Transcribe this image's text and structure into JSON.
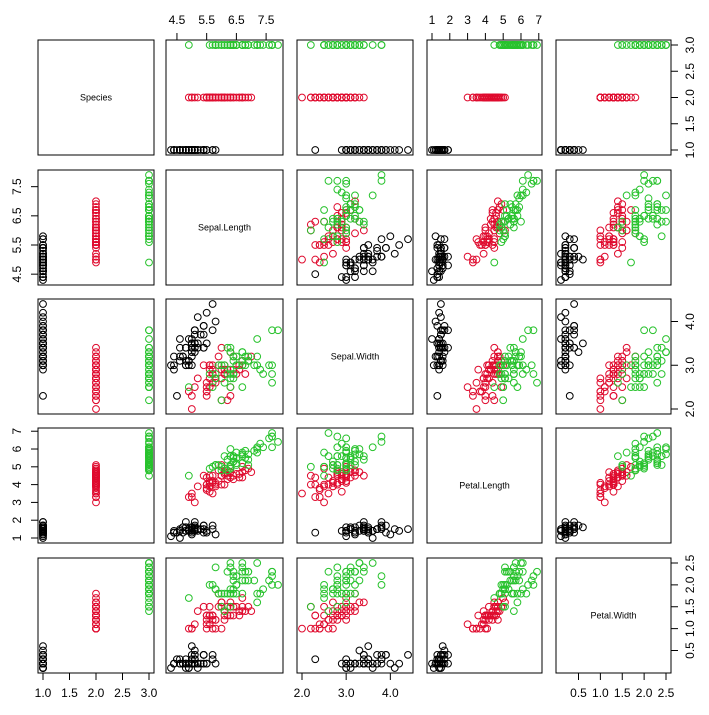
{
  "chart_data": {
    "type": "scatter",
    "kind": "scatterplot-matrix",
    "variables": [
      "Species",
      "Sepal.Length",
      "Sepal.Width",
      "Petal.Length",
      "Petal.Width"
    ],
    "ranges": {
      "Species": [
        1,
        3
      ],
      "Sepal.Length": [
        4.3,
        7.9
      ],
      "Sepal.Width": [
        2.0,
        4.4
      ],
      "Petal.Length": [
        1.0,
        6.9
      ],
      "Petal.Width": [
        0.1,
        2.5
      ]
    },
    "ticks": {
      "Species": [
        "1.0",
        "1.5",
        "2.0",
        "2.5",
        "3.0"
      ],
      "Sepal.Length": [
        "4.5",
        "5.5",
        "6.5",
        "7.5"
      ],
      "Sepal.Width": [
        "2.0",
        "3.0",
        "4.0"
      ],
      "Petal.Length": [
        "1",
        "2",
        "3",
        "4",
        "5",
        "6",
        "7"
      ],
      "Petal.Width": [
        "0.5",
        "1.0",
        "1.5",
        "2.0",
        "2.5"
      ]
    },
    "group_colors": {
      "1": "#000000",
      "2": "#df0b2e",
      "3": "#28c22d"
    },
    "grid": false,
    "groups": [
      {
        "species": 1,
        "points": [
          [
            5.1,
            3.5,
            1.4,
            0.2
          ],
          [
            4.9,
            3.0,
            1.4,
            0.2
          ],
          [
            4.7,
            3.2,
            1.3,
            0.2
          ],
          [
            4.6,
            3.1,
            1.5,
            0.2
          ],
          [
            5.0,
            3.6,
            1.4,
            0.2
          ],
          [
            5.4,
            3.9,
            1.7,
            0.4
          ],
          [
            4.6,
            3.4,
            1.4,
            0.3
          ],
          [
            5.0,
            3.4,
            1.5,
            0.2
          ],
          [
            4.4,
            2.9,
            1.4,
            0.2
          ],
          [
            4.9,
            3.1,
            1.5,
            0.1
          ],
          [
            5.4,
            3.7,
            1.5,
            0.2
          ],
          [
            4.8,
            3.4,
            1.6,
            0.2
          ],
          [
            4.8,
            3.0,
            1.4,
            0.1
          ],
          [
            4.3,
            3.0,
            1.1,
            0.1
          ],
          [
            5.8,
            4.0,
            1.2,
            0.2
          ],
          [
            5.7,
            4.4,
            1.5,
            0.4
          ],
          [
            5.4,
            3.9,
            1.3,
            0.4
          ],
          [
            5.1,
            3.5,
            1.4,
            0.3
          ],
          [
            5.7,
            3.8,
            1.7,
            0.3
          ],
          [
            5.1,
            3.8,
            1.5,
            0.3
          ],
          [
            5.4,
            3.4,
            1.7,
            0.2
          ],
          [
            5.1,
            3.7,
            1.5,
            0.4
          ],
          [
            4.6,
            3.6,
            1.0,
            0.2
          ],
          [
            5.1,
            3.3,
            1.7,
            0.5
          ],
          [
            4.8,
            3.4,
            1.9,
            0.2
          ],
          [
            5.0,
            3.0,
            1.6,
            0.2
          ],
          [
            5.0,
            3.4,
            1.6,
            0.4
          ],
          [
            5.2,
            3.5,
            1.5,
            0.2
          ],
          [
            5.2,
            3.4,
            1.4,
            0.2
          ],
          [
            4.7,
            3.2,
            1.6,
            0.2
          ],
          [
            4.8,
            3.1,
            1.6,
            0.2
          ],
          [
            5.4,
            3.4,
            1.5,
            0.4
          ],
          [
            5.2,
            4.1,
            1.5,
            0.1
          ],
          [
            5.5,
            4.2,
            1.4,
            0.2
          ],
          [
            4.9,
            3.1,
            1.5,
            0.2
          ],
          [
            5.0,
            3.2,
            1.2,
            0.2
          ],
          [
            5.5,
            3.5,
            1.3,
            0.2
          ],
          [
            4.9,
            3.6,
            1.4,
            0.1
          ],
          [
            4.4,
            3.0,
            1.3,
            0.2
          ],
          [
            5.1,
            3.4,
            1.5,
            0.2
          ],
          [
            5.0,
            3.5,
            1.3,
            0.3
          ],
          [
            4.5,
            2.3,
            1.3,
            0.3
          ],
          [
            4.4,
            3.2,
            1.3,
            0.2
          ],
          [
            5.0,
            3.5,
            1.6,
            0.6
          ],
          [
            5.1,
            3.8,
            1.9,
            0.4
          ],
          [
            4.8,
            3.0,
            1.4,
            0.3
          ],
          [
            5.1,
            3.8,
            1.6,
            0.2
          ],
          [
            4.6,
            3.2,
            1.4,
            0.2
          ],
          [
            5.3,
            3.7,
            1.5,
            0.2
          ],
          [
            5.0,
            3.3,
            1.4,
            0.2
          ]
        ]
      },
      {
        "species": 2,
        "points": [
          [
            7.0,
            3.2,
            4.7,
            1.4
          ],
          [
            6.4,
            3.2,
            4.5,
            1.5
          ],
          [
            6.9,
            3.1,
            4.9,
            1.5
          ],
          [
            5.5,
            2.3,
            4.0,
            1.3
          ],
          [
            6.5,
            2.8,
            4.6,
            1.5
          ],
          [
            5.7,
            2.8,
            4.5,
            1.3
          ],
          [
            6.3,
            3.3,
            4.7,
            1.6
          ],
          [
            4.9,
            2.4,
            3.3,
            1.0
          ],
          [
            6.6,
            2.9,
            4.6,
            1.3
          ],
          [
            5.2,
            2.7,
            3.9,
            1.4
          ],
          [
            5.0,
            2.0,
            3.5,
            1.0
          ],
          [
            5.9,
            3.0,
            4.2,
            1.5
          ],
          [
            6.0,
            2.2,
            4.0,
            1.0
          ],
          [
            6.1,
            2.9,
            4.7,
            1.4
          ],
          [
            5.6,
            2.9,
            3.6,
            1.3
          ],
          [
            6.7,
            3.1,
            4.4,
            1.4
          ],
          [
            5.6,
            3.0,
            4.5,
            1.5
          ],
          [
            5.8,
            2.7,
            4.1,
            1.0
          ],
          [
            6.2,
            2.2,
            4.5,
            1.5
          ],
          [
            5.6,
            2.5,
            3.9,
            1.1
          ],
          [
            5.9,
            3.2,
            4.8,
            1.8
          ],
          [
            6.1,
            2.8,
            4.0,
            1.3
          ],
          [
            6.3,
            2.5,
            4.9,
            1.5
          ],
          [
            6.1,
            2.8,
            4.7,
            1.2
          ],
          [
            6.4,
            2.9,
            4.3,
            1.3
          ],
          [
            6.6,
            3.0,
            4.4,
            1.4
          ],
          [
            6.8,
            2.8,
            4.8,
            1.4
          ],
          [
            6.7,
            3.0,
            5.0,
            1.7
          ],
          [
            6.0,
            2.9,
            4.5,
            1.5
          ],
          [
            5.7,
            2.6,
            3.5,
            1.0
          ],
          [
            5.5,
            2.4,
            3.8,
            1.1
          ],
          [
            5.5,
            2.4,
            3.7,
            1.0
          ],
          [
            5.8,
            2.7,
            3.9,
            1.2
          ],
          [
            6.0,
            2.7,
            5.1,
            1.6
          ],
          [
            5.4,
            3.0,
            4.5,
            1.5
          ],
          [
            6.0,
            3.4,
            4.5,
            1.6
          ],
          [
            6.7,
            3.1,
            4.7,
            1.5
          ],
          [
            6.3,
            2.3,
            4.4,
            1.3
          ],
          [
            5.6,
            3.0,
            4.1,
            1.3
          ],
          [
            5.5,
            2.5,
            4.0,
            1.3
          ],
          [
            5.5,
            2.6,
            4.4,
            1.2
          ],
          [
            6.1,
            3.0,
            4.6,
            1.4
          ],
          [
            5.8,
            2.6,
            4.0,
            1.2
          ],
          [
            5.0,
            2.3,
            3.3,
            1.0
          ],
          [
            5.6,
            2.7,
            4.2,
            1.3
          ],
          [
            5.7,
            3.0,
            4.2,
            1.2
          ],
          [
            5.7,
            2.9,
            4.2,
            1.3
          ],
          [
            6.2,
            2.9,
            4.3,
            1.3
          ],
          [
            5.1,
            2.5,
            3.0,
            1.1
          ],
          [
            5.7,
            2.8,
            4.1,
            1.3
          ]
        ]
      },
      {
        "species": 3,
        "points": [
          [
            6.3,
            3.3,
            6.0,
            2.5
          ],
          [
            5.8,
            2.7,
            5.1,
            1.9
          ],
          [
            7.1,
            3.0,
            5.9,
            2.1
          ],
          [
            6.3,
            2.9,
            5.6,
            1.8
          ],
          [
            6.5,
            3.0,
            5.8,
            2.2
          ],
          [
            7.6,
            3.0,
            6.6,
            2.1
          ],
          [
            4.9,
            2.5,
            4.5,
            1.7
          ],
          [
            7.3,
            2.9,
            6.3,
            1.8
          ],
          [
            6.7,
            2.5,
            5.8,
            1.8
          ],
          [
            7.2,
            3.6,
            6.1,
            2.5
          ],
          [
            6.5,
            3.2,
            5.1,
            2.0
          ],
          [
            6.4,
            2.7,
            5.3,
            1.9
          ],
          [
            6.8,
            3.0,
            5.5,
            2.1
          ],
          [
            5.7,
            2.5,
            5.0,
            2.0
          ],
          [
            5.8,
            2.8,
            5.1,
            2.4
          ],
          [
            6.4,
            3.2,
            5.3,
            2.3
          ],
          [
            6.5,
            3.0,
            5.5,
            1.8
          ],
          [
            7.7,
            3.8,
            6.7,
            2.2
          ],
          [
            7.7,
            2.6,
            6.9,
            2.3
          ],
          [
            6.0,
            2.2,
            5.0,
            1.5
          ],
          [
            6.9,
            3.2,
            5.7,
            2.3
          ],
          [
            5.6,
            2.8,
            4.9,
            2.0
          ],
          [
            7.7,
            2.8,
            6.7,
            2.0
          ],
          [
            6.3,
            2.7,
            4.9,
            1.8
          ],
          [
            6.7,
            3.3,
            5.7,
            2.1
          ],
          [
            7.2,
            3.2,
            6.0,
            1.8
          ],
          [
            6.2,
            2.8,
            4.8,
            1.8
          ],
          [
            6.1,
            3.0,
            4.9,
            1.8
          ],
          [
            6.4,
            2.8,
            5.6,
            2.1
          ],
          [
            7.2,
            3.0,
            5.8,
            1.6
          ],
          [
            7.4,
            2.8,
            6.1,
            1.9
          ],
          [
            7.9,
            3.8,
            6.4,
            2.0
          ],
          [
            6.4,
            2.8,
            5.6,
            2.2
          ],
          [
            6.3,
            2.8,
            5.1,
            1.5
          ],
          [
            6.1,
            2.6,
            5.6,
            1.4
          ],
          [
            7.7,
            3.0,
            6.1,
            2.3
          ],
          [
            6.3,
            3.4,
            5.6,
            2.4
          ],
          [
            6.4,
            3.1,
            5.5,
            1.8
          ],
          [
            6.0,
            3.0,
            4.8,
            1.8
          ],
          [
            6.9,
            3.1,
            5.4,
            2.1
          ],
          [
            6.7,
            3.1,
            5.6,
            2.4
          ],
          [
            6.9,
            3.1,
            5.1,
            2.3
          ],
          [
            5.8,
            2.7,
            5.1,
            1.9
          ],
          [
            6.8,
            3.2,
            5.9,
            2.3
          ],
          [
            6.7,
            3.3,
            5.7,
            2.5
          ],
          [
            6.7,
            3.0,
            5.2,
            2.3
          ],
          [
            6.3,
            2.5,
            5.0,
            1.9
          ],
          [
            6.5,
            3.0,
            5.2,
            2.0
          ],
          [
            6.2,
            3.4,
            5.4,
            2.3
          ],
          [
            5.9,
            3.0,
            5.1,
            1.8
          ]
        ]
      }
    ]
  }
}
